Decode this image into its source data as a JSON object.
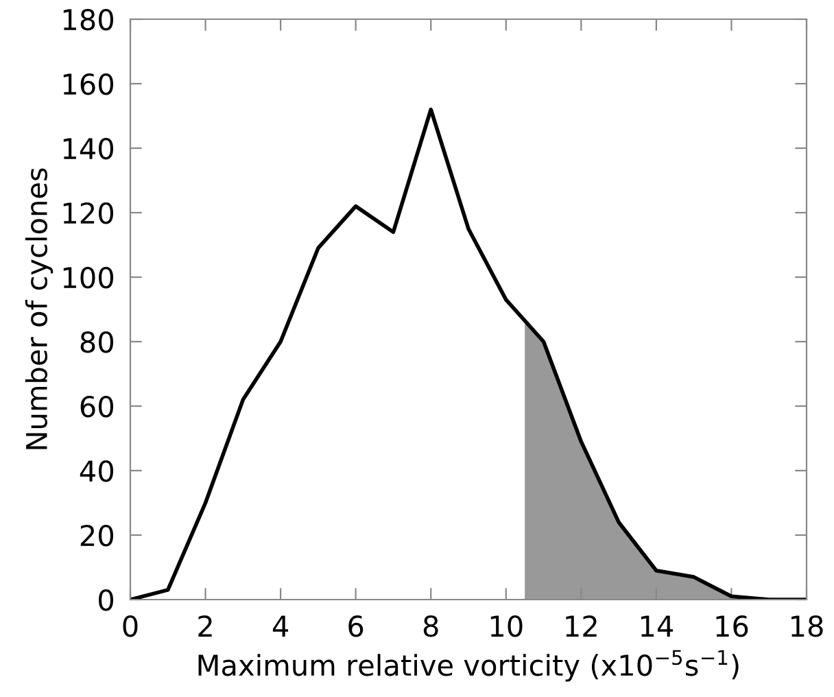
{
  "chart_data": {
    "type": "line",
    "xlabel": "Maximum relative vorticity (x10$^{−5}$s$^{−1}$)",
    "ylabel": "Number of cyclones",
    "xlim": [
      0,
      18
    ],
    "ylim": [
      0,
      180
    ],
    "xticks": [
      0,
      2,
      4,
      6,
      8,
      10,
      12,
      14,
      16,
      18
    ],
    "yticks": [
      0,
      20,
      40,
      60,
      80,
      100,
      120,
      140,
      160,
      180
    ],
    "series": [
      {
        "type": "area",
        "color": "#999999",
        "x": [
          10.5,
          11,
          12,
          13,
          14,
          15,
          16,
          17,
          18
        ],
        "values": [
          86,
          80,
          49,
          24,
          9,
          7,
          1,
          0,
          0
        ]
      },
      {
        "color": "#000000",
        "x": [
          0,
          1,
          2,
          3,
          4,
          5,
          6,
          7,
          8,
          9,
          10,
          11,
          12,
          13,
          14,
          15,
          16,
          17,
          18
        ],
        "values": [
          0,
          3,
          30,
          62,
          80,
          109,
          122,
          114,
          152,
          115,
          93,
          80,
          49,
          24,
          9,
          7,
          1,
          0,
          0
        ]
      }
    ],
    "grid": false,
    "legend": false
  }
}
